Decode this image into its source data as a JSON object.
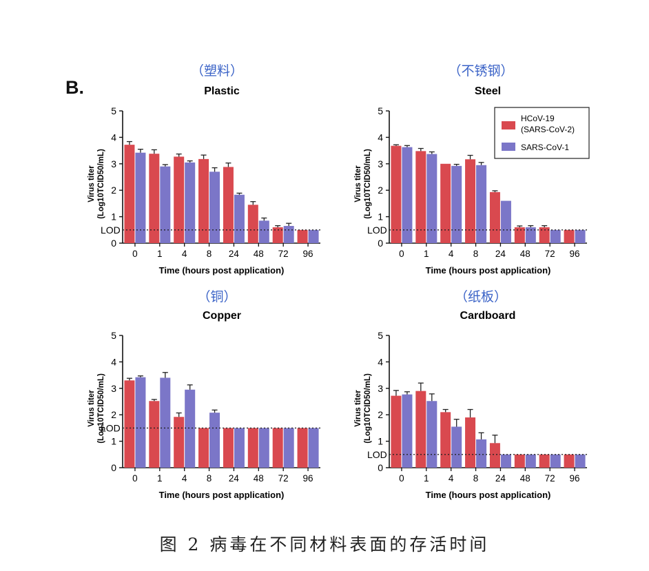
{
  "panel_label": "B.",
  "figure_caption": "图 2 病毒在不同材料表面的存活时间",
  "colors": {
    "series1": "#d9494f",
    "series2": "#7b76c8"
  },
  "legend": {
    "items": [
      "HCoV-19",
      "(SARS-CoV-2)",
      "SARS-CoV-1"
    ]
  },
  "chart_data": [
    {
      "type": "bar",
      "cn_title": "（塑料）",
      "title": "Plastic",
      "xlabel": "Time (hours post application)",
      "ylabel": [
        "Virus titer",
        "(Log10TCID50/mL)"
      ],
      "ylim": [
        0,
        5
      ],
      "yticks": [
        "0",
        "1",
        "2",
        "3",
        "4",
        "5"
      ],
      "lod": 0.5,
      "lod_label": "LOD",
      "categories": [
        "0",
        "1",
        "4",
        "8",
        "24",
        "48",
        "72",
        "96"
      ],
      "series": [
        {
          "name": "HCoV-19 (SARS-CoV-2)",
          "values": [
            3.72,
            3.38,
            3.27,
            3.18,
            2.88,
            1.45,
            0.6,
            0.5
          ],
          "err": [
            0.12,
            0.15,
            0.1,
            0.15,
            0.15,
            0.12,
            0.06,
            0
          ]
        },
        {
          "name": "SARS-CoV-1",
          "values": [
            3.42,
            2.9,
            3.05,
            2.7,
            1.83,
            0.85,
            0.65,
            0.5
          ],
          "err": [
            0.13,
            0.07,
            0.06,
            0.15,
            0.06,
            0.1,
            0.1,
            0
          ]
        }
      ]
    },
    {
      "type": "bar",
      "cn_title": "（不锈钢）",
      "title": "Steel",
      "xlabel": "Time (hours post application)",
      "ylabel": [
        "Virus titer",
        "(Log10TCID50/mL)"
      ],
      "ylim": [
        0,
        5
      ],
      "yticks": [
        "0",
        "1",
        "2",
        "3",
        "4",
        "5"
      ],
      "lod": 0.5,
      "lod_label": "LOD",
      "categories": [
        "0",
        "1",
        "4",
        "8",
        "24",
        "48",
        "72",
        "96"
      ],
      "series": [
        {
          "name": "HCoV-19 (SARS-CoV-2)",
          "values": [
            3.68,
            3.48,
            3.0,
            3.17,
            1.93,
            0.6,
            0.6,
            0.5
          ],
          "err": [
            0.04,
            0.1,
            0,
            0.15,
            0.05,
            0.05,
            0.06,
            0
          ]
        },
        {
          "name": "SARS-CoV-1",
          "values": [
            3.63,
            3.37,
            2.92,
            2.95,
            1.6,
            0.6,
            0.5,
            0.5
          ],
          "err": [
            0.06,
            0.08,
            0.06,
            0.1,
            0,
            0.06,
            0,
            0
          ]
        }
      ],
      "legend": true
    },
    {
      "type": "bar",
      "cn_title": "（铜）",
      "title": "Copper",
      "xlabel": "Time (hours post application)",
      "ylabel": [
        "Virus titer",
        "(Log10TCID50/mL)"
      ],
      "ylim": [
        0,
        5
      ],
      "yticks": [
        "0",
        "1",
        "2",
        "3",
        "4",
        "5"
      ],
      "lod": 1.5,
      "lod_label": "LOD",
      "categories": [
        "0",
        "1",
        "4",
        "8",
        "24",
        "48",
        "72",
        "96"
      ],
      "series": [
        {
          "name": "HCoV-19 (SARS-CoV-2)",
          "values": [
            3.3,
            2.52,
            1.92,
            1.5,
            1.5,
            1.5,
            1.5,
            1.5
          ],
          "err": [
            0.08,
            0.06,
            0.15,
            0,
            0,
            0,
            0,
            0
          ]
        },
        {
          "name": "SARS-CoV-1",
          "values": [
            3.42,
            3.4,
            2.95,
            2.08,
            1.5,
            1.5,
            1.5,
            1.5
          ],
          "err": [
            0.05,
            0.2,
            0.18,
            0.1,
            0,
            0,
            0,
            0
          ]
        }
      ]
    },
    {
      "type": "bar",
      "cn_title": "（纸板）",
      "title": "Cardboard",
      "xlabel": "Time (hours post application)",
      "ylabel": [
        "Virus titer",
        "(Log10TCID50/mL)"
      ],
      "ylim": [
        0,
        5
      ],
      "yticks": [
        "0",
        "1",
        "2",
        "3",
        "4",
        "5"
      ],
      "lod": 0.5,
      "lod_label": "LOD",
      "categories": [
        "0",
        "1",
        "4",
        "8",
        "24",
        "48",
        "72",
        "96"
      ],
      "series": [
        {
          "name": "HCoV-19 (SARS-CoV-2)",
          "values": [
            2.72,
            2.9,
            2.1,
            1.9,
            0.93,
            0.5,
            0.5,
            0.5
          ],
          "err": [
            0.2,
            0.3,
            0.1,
            0.3,
            0.3,
            0,
            0,
            0
          ]
        },
        {
          "name": "SARS-CoV-1",
          "values": [
            2.77,
            2.52,
            1.55,
            1.07,
            0.5,
            0.5,
            0.5,
            0.5
          ],
          "err": [
            0.1,
            0.27,
            0.28,
            0.25,
            0,
            0,
            0,
            0
          ]
        }
      ]
    }
  ]
}
